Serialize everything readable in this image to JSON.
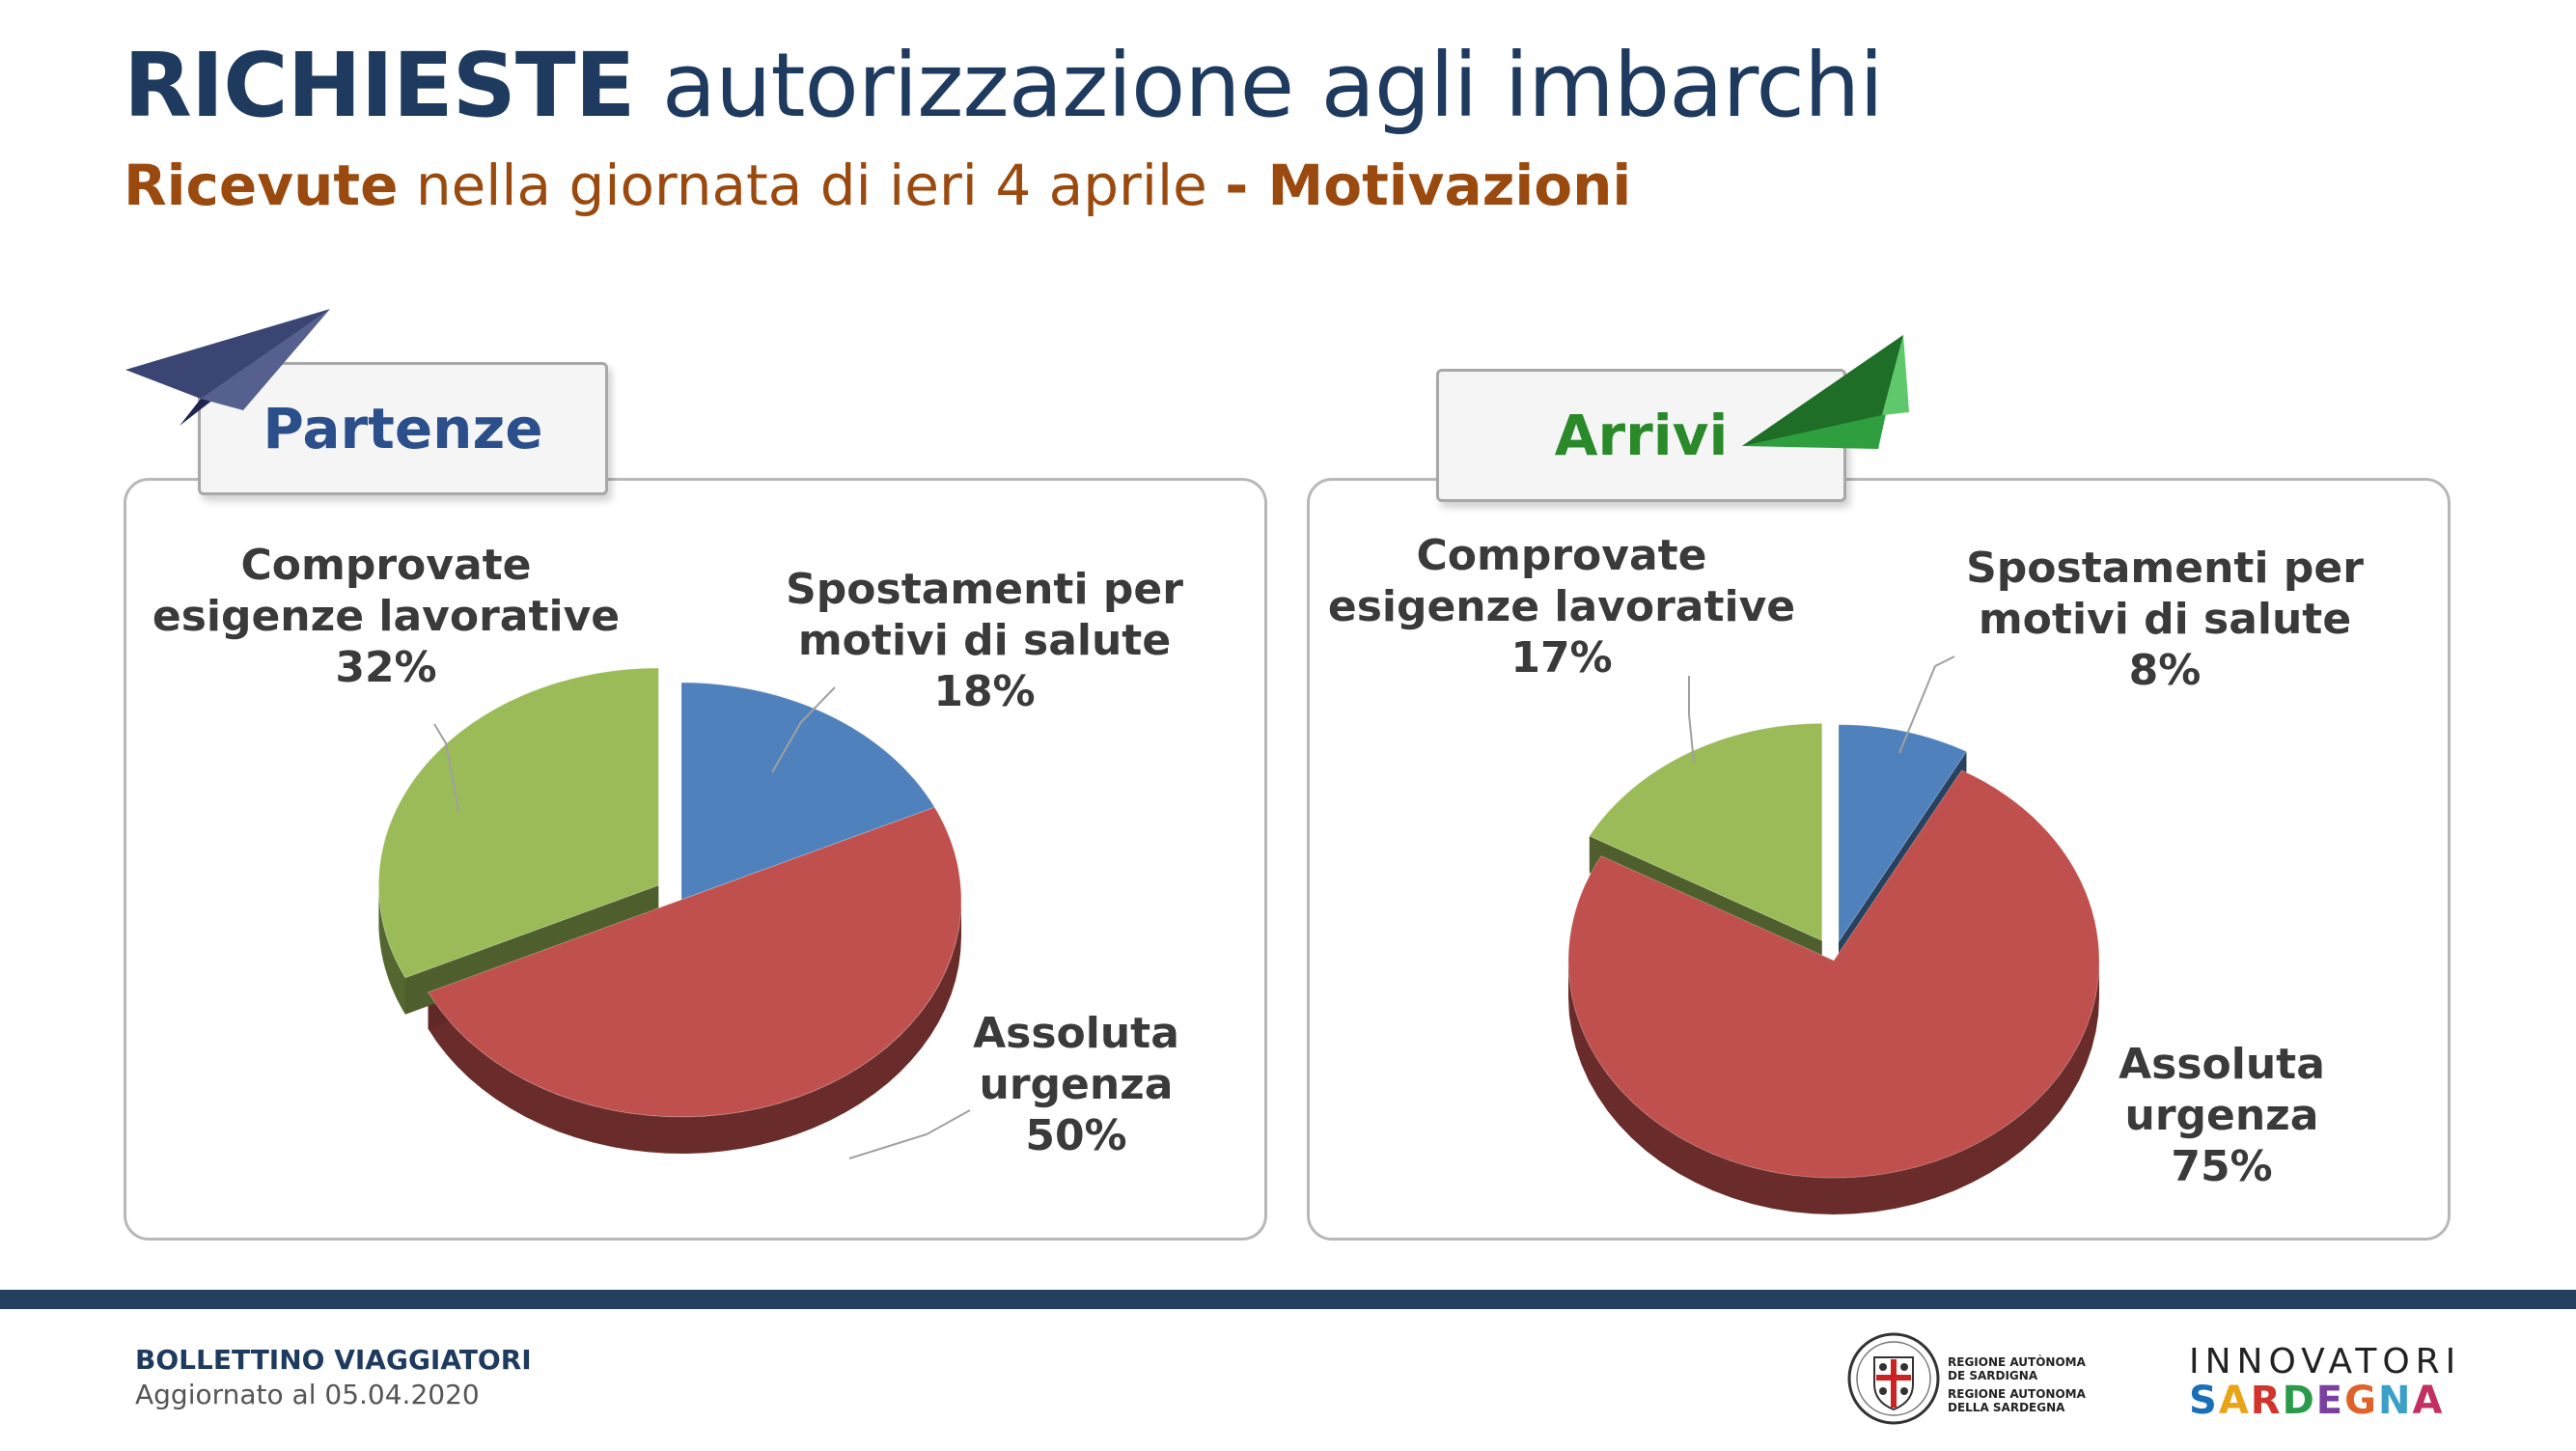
{
  "header": {
    "title_bold": "RICHIESTE",
    "title_rest": " autorizzazione agli imbarchi",
    "subtitle_bold": "Ricevute",
    "subtitle_rest": " nella giornata di ieri 4 aprile ",
    "subtitle_tail": "- Motivazioni"
  },
  "chart_data": [
    {
      "type": "pie",
      "title": "Partenze",
      "slices": [
        {
          "label_lines": [
            "Spostamenti per",
            "motivi di salute"
          ],
          "percent_label": "18%",
          "value": 18,
          "color": "#4f81bd"
        },
        {
          "label_lines": [
            "Assoluta",
            "urgenza"
          ],
          "percent_label": "50%",
          "value": 50,
          "color": "#c0504d"
        },
        {
          "label_lines": [
            "Comprovate",
            "esigenze lavorative"
          ],
          "percent_label": "32%",
          "value": 32,
          "color": "#9bbb59"
        }
      ]
    },
    {
      "type": "pie",
      "title": "Arrivi",
      "slices": [
        {
          "label_lines": [
            "Spostamenti per",
            "motivi di salute"
          ],
          "percent_label": "8%",
          "value": 8,
          "color": "#4f81bd"
        },
        {
          "label_lines": [
            "Assoluta",
            "urgenza"
          ],
          "percent_label": "75%",
          "value": 75,
          "color": "#c0504d"
        },
        {
          "label_lines": [
            "Comprovate",
            "esigenze lavorative"
          ],
          "percent_label": "17%",
          "value": 17,
          "color": "#9bbb59"
        }
      ]
    }
  ],
  "footer": {
    "bulletin": "BOLLETTINO VIAGGIATORI",
    "updated": "Aggiornato al 05.04.2020",
    "region_lines": [
      "REGIONE AUTÒNOMA",
      "DE SARDIGNA",
      "REGIONE AUTONOMA",
      "DELLA SARDEGNA"
    ],
    "innovatori": "INNOVATORI",
    "sardegna": "SARDEGNA",
    "sardegna_colors": [
      "#1a6fb8",
      "#e8a317",
      "#d0342c",
      "#2a9a4a",
      "#7a3fa0",
      "#e0612a",
      "#3aa0c8",
      "#c22f60"
    ]
  }
}
